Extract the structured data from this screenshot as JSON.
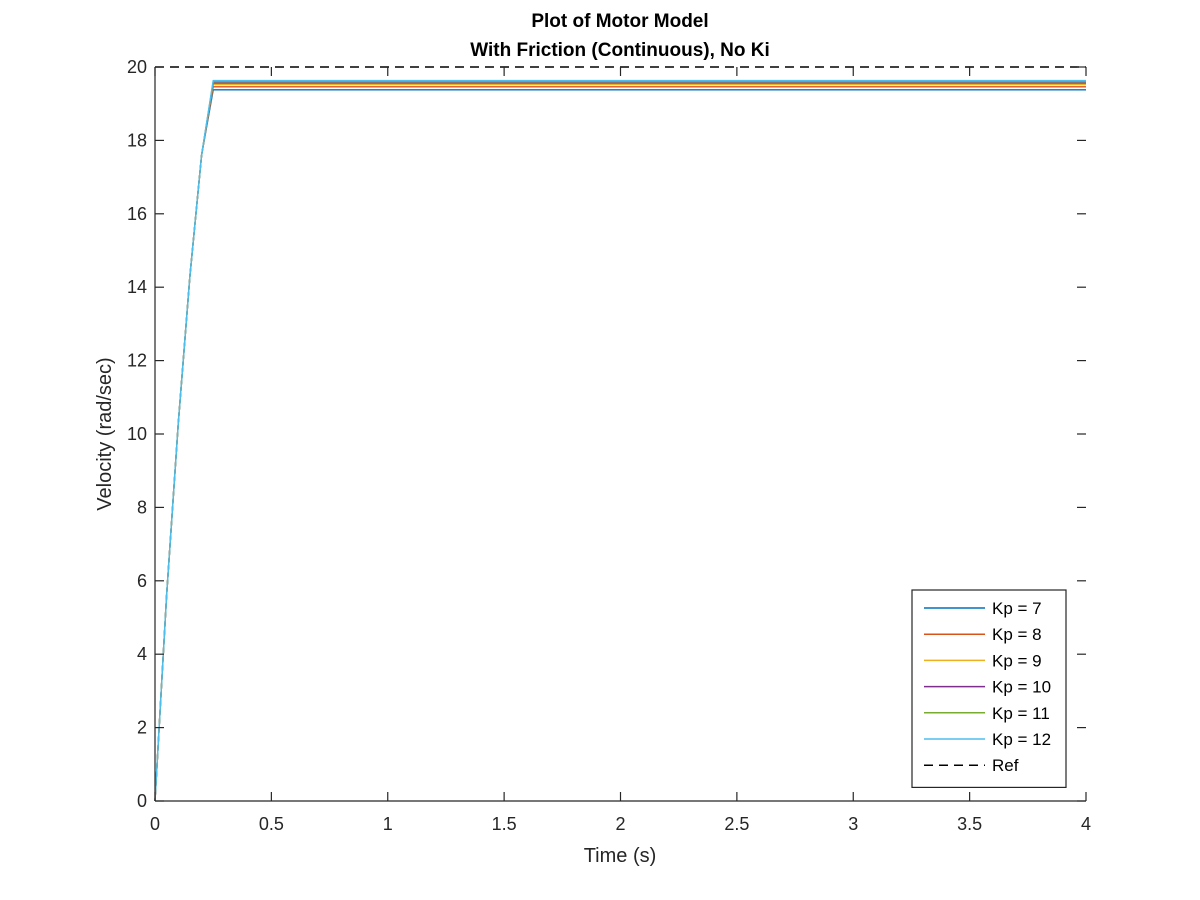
{
  "chart_data": {
    "type": "line",
    "title": [
      "Plot of Motor Model",
      "With Friction (Continuous), No Ki"
    ],
    "xlabel": "Time (s)",
    "ylabel": "Velocity (rad/sec)",
    "xlim": [
      0,
      4
    ],
    "ylim": [
      0,
      20
    ],
    "xticks": [
      0,
      0.5,
      1,
      1.5,
      2,
      2.5,
      3,
      3.5,
      4
    ],
    "xtick_labels": [
      "0",
      "0.5",
      "1",
      "1.5",
      "2",
      "2.5",
      "3",
      "3.5",
      "4"
    ],
    "yticks": [
      0,
      2,
      4,
      6,
      8,
      10,
      12,
      14,
      16,
      18,
      20
    ],
    "ytick_labels": [
      "0",
      "2",
      "4",
      "6",
      "8",
      "10",
      "12",
      "14",
      "16",
      "18",
      "20"
    ],
    "grid": false,
    "legend_position": "bottom-right",
    "series": [
      {
        "name": "Kp = 7",
        "color": "#0072BD",
        "style": "solid",
        "x": [
          0,
          0.05,
          0.1,
          0.15,
          0.2,
          0.25,
          4
        ],
        "y": [
          0,
          5.6,
          10.3,
          14.3,
          17.6,
          19.38,
          19.38
        ]
      },
      {
        "name": "Kp = 8",
        "color": "#D95319",
        "style": "solid",
        "x": [
          0,
          0.05,
          0.1,
          0.15,
          0.2,
          0.25,
          4
        ],
        "y": [
          0,
          5.6,
          10.3,
          14.3,
          17.6,
          19.46,
          19.46
        ]
      },
      {
        "name": "Kp = 9",
        "color": "#EDB120",
        "style": "solid",
        "x": [
          0,
          0.05,
          0.1,
          0.15,
          0.2,
          0.25,
          4
        ],
        "y": [
          0,
          5.6,
          10.3,
          14.3,
          17.6,
          19.52,
          19.52
        ]
      },
      {
        "name": "Kp = 10",
        "color": "#7E2F8E",
        "style": "solid",
        "x": [
          0,
          0.05,
          0.1,
          0.15,
          0.2,
          0.25,
          4
        ],
        "y": [
          0,
          5.6,
          10.3,
          14.3,
          17.6,
          19.56,
          19.56
        ]
      },
      {
        "name": "Kp = 11",
        "color": "#77AC30",
        "style": "solid",
        "x": [
          0,
          0.05,
          0.1,
          0.15,
          0.2,
          0.25,
          4
        ],
        "y": [
          0,
          5.6,
          10.3,
          14.3,
          17.6,
          19.6,
          19.6
        ]
      },
      {
        "name": "Kp = 12",
        "color": "#4DBEEE",
        "style": "solid",
        "x": [
          0,
          0.05,
          0.1,
          0.15,
          0.2,
          0.25,
          4
        ],
        "y": [
          0,
          5.6,
          10.3,
          14.3,
          17.6,
          19.63,
          19.63
        ]
      },
      {
        "name": "Ref",
        "color": "#000000",
        "style": "dashed",
        "x": [
          0,
          4
        ],
        "y": [
          20,
          20
        ]
      }
    ]
  }
}
